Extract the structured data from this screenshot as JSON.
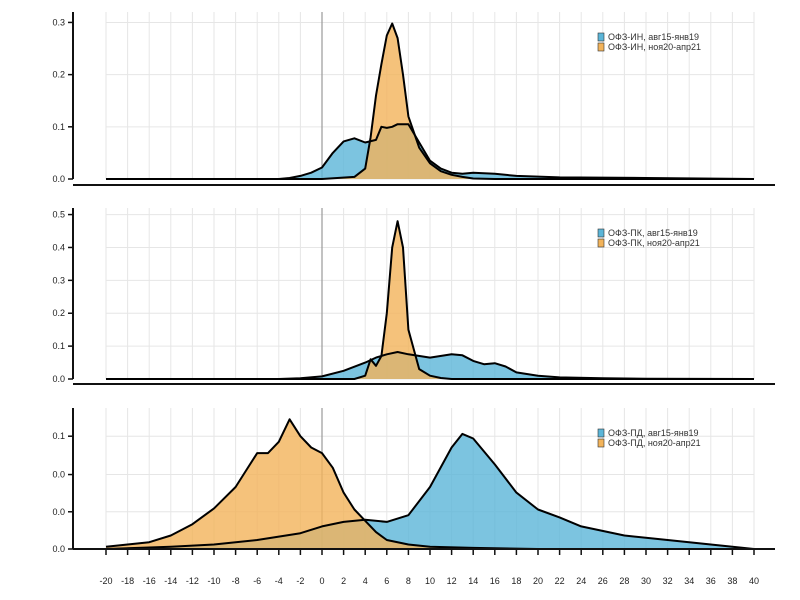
{
  "colors": {
    "series_a": "#5bb5d8",
    "series_b": "#f2b35a",
    "overlap": "#c8a36a",
    "grid": "#e6e6e6",
    "zero_line": "#9a9a9a",
    "axis": "#111111",
    "curve": "#000000"
  },
  "chart_data": [
    {
      "type": "area",
      "title": "",
      "xlabel": "",
      "ylabel": "",
      "xlim": [
        -20,
        40
      ],
      "ylim": [
        0,
        0.32
      ],
      "yticks": [
        0.0,
        0.1,
        0.2,
        0.3
      ],
      "ytick_labels": [
        "0.0",
        "0.1",
        "0.2",
        "0.3"
      ],
      "grid": true,
      "legend_position": "top-right",
      "series": [
        {
          "name": "ОФЗ-ИН, авг15-янв19",
          "color": "#5bb5d8",
          "x": [
            -20,
            -4,
            -3,
            -2,
            -1,
            0,
            1,
            2,
            3,
            4,
            5,
            5.5,
            6,
            6.5,
            7,
            8,
            9,
            10,
            11,
            12,
            13,
            14,
            16,
            18,
            22,
            30,
            40
          ],
          "y": [
            0,
            0,
            0.002,
            0.006,
            0.012,
            0.022,
            0.05,
            0.072,
            0.078,
            0.07,
            0.075,
            0.1,
            0.098,
            0.1,
            0.105,
            0.105,
            0.07,
            0.035,
            0.02,
            0.012,
            0.01,
            0.012,
            0.01,
            0.006,
            0.003,
            0.002,
            0
          ]
        },
        {
          "name": "ОФЗ-ИН, ноя20-апр21",
          "color": "#f2b35a",
          "x": [
            -20,
            0,
            3,
            4,
            4.5,
            5,
            5.5,
            6,
            6.5,
            7,
            7.5,
            8,
            9,
            10,
            11,
            12,
            13,
            14,
            16,
            40
          ],
          "y": [
            0,
            0,
            0.004,
            0.02,
            0.08,
            0.16,
            0.22,
            0.275,
            0.298,
            0.27,
            0.2,
            0.12,
            0.06,
            0.03,
            0.015,
            0.008,
            0.004,
            0.001,
            0,
            0
          ]
        }
      ]
    },
    {
      "type": "area",
      "title": "",
      "xlabel": "",
      "ylabel": "",
      "xlim": [
        -20,
        40
      ],
      "ylim": [
        0,
        0.52
      ],
      "yticks": [
        0.0,
        0.1,
        0.2,
        0.3,
        0.4,
        0.5
      ],
      "ytick_labels": [
        "0.0",
        "0.1",
        "0.2",
        "0.3",
        "0.4",
        "0.5"
      ],
      "grid": true,
      "legend_position": "top-right",
      "series": [
        {
          "name": "ОФЗ-ПК, авг15-янв19",
          "color": "#5bb5d8",
          "x": [
            -20,
            -4,
            -2,
            0,
            2,
            4,
            5,
            6,
            7,
            8,
            10,
            12,
            13,
            14,
            15,
            16,
            17,
            18,
            20,
            22,
            26,
            30,
            40
          ],
          "y": [
            0,
            0,
            0.002,
            0.008,
            0.025,
            0.05,
            0.065,
            0.075,
            0.082,
            0.075,
            0.065,
            0.075,
            0.072,
            0.055,
            0.045,
            0.048,
            0.038,
            0.02,
            0.01,
            0.005,
            0.002,
            0.001,
            0
          ]
        },
        {
          "name": "ОФЗ-ПК, ноя20-апр21",
          "color": "#f2b35a",
          "x": [
            -20,
            3,
            4,
            4.5,
            5,
            5.5,
            6,
            6.5,
            7,
            7.5,
            8,
            9,
            10,
            11,
            12,
            40
          ],
          "y": [
            0,
            0,
            0.01,
            0.06,
            0.04,
            0.07,
            0.2,
            0.4,
            0.48,
            0.4,
            0.15,
            0.03,
            0.01,
            0.003,
            0,
            0
          ]
        }
      ]
    },
    {
      "type": "area",
      "title": "",
      "xlabel": "",
      "ylabel": "",
      "xlim": [
        -20,
        40
      ],
      "ylim": [
        0,
        0.125
      ],
      "yticks": [
        0.0,
        0.033,
        0.066,
        0.1
      ],
      "ytick_labels": [
        "0.0",
        "0.0",
        "0.0",
        "0.1"
      ],
      "grid": true,
      "legend_position": "top-right",
      "series": [
        {
          "name": "ОФЗ-ПД, авг15-янв19",
          "color": "#5bb5d8",
          "x": [
            -20,
            -14,
            -10,
            -6,
            -2,
            0,
            2,
            4,
            6,
            8,
            10,
            12,
            13,
            14,
            16,
            18,
            20,
            22,
            24,
            28,
            32,
            36,
            40
          ],
          "y": [
            0,
            0.002,
            0.004,
            0.008,
            0.014,
            0.02,
            0.024,
            0.026,
            0.024,
            0.03,
            0.055,
            0.09,
            0.102,
            0.098,
            0.075,
            0.05,
            0.035,
            0.028,
            0.02,
            0.012,
            0.008,
            0.004,
            0
          ]
        },
        {
          "name": "ОФЗ-ПД, ноя20-апр21",
          "color": "#f2b35a",
          "x": [
            -20,
            -18,
            -16,
            -14,
            -12,
            -10,
            -8,
            -7,
            -6,
            -5,
            -4,
            -3,
            -2,
            -1,
            0,
            1,
            2,
            3,
            4,
            5,
            6,
            8,
            10,
            14,
            20,
            40
          ],
          "y": [
            0.002,
            0.004,
            0.006,
            0.012,
            0.022,
            0.036,
            0.055,
            0.07,
            0.085,
            0.085,
            0.095,
            0.115,
            0.1,
            0.09,
            0.085,
            0.072,
            0.05,
            0.035,
            0.025,
            0.015,
            0.008,
            0.004,
            0.002,
            0.001,
            0,
            0
          ]
        }
      ]
    }
  ],
  "x_axis": {
    "ticks": [
      -20,
      -18,
      -16,
      -14,
      -12,
      -10,
      -8,
      -6,
      -4,
      -2,
      0,
      2,
      4,
      6,
      8,
      10,
      12,
      14,
      16,
      18,
      20,
      22,
      24,
      26,
      28,
      30,
      32,
      34,
      36,
      38,
      40
    ],
    "tick_labels": [
      "-20",
      "-18",
      "-16",
      "-14",
      "-12",
      "-10",
      "-8",
      "-6",
      "-4",
      "-2",
      "0",
      "2",
      "4",
      "6",
      "8",
      "10",
      "12",
      "14",
      "16",
      "18",
      "20",
      "22",
      "24",
      "26",
      "28",
      "30",
      "32",
      "34",
      "36",
      "38",
      "40"
    ]
  }
}
